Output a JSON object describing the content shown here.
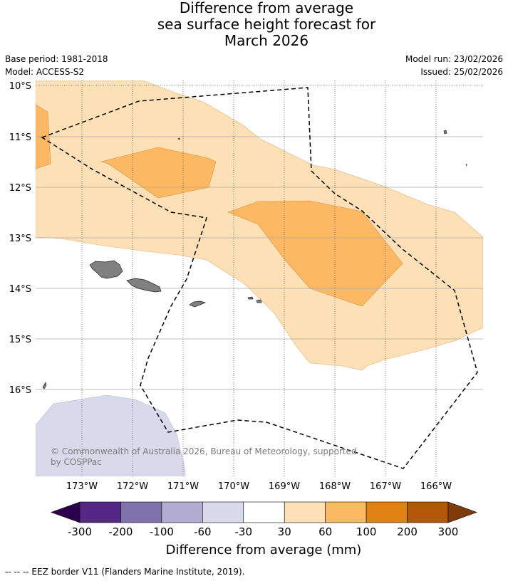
{
  "title": {
    "line1": "Difference from average",
    "line2": "sea surface height forecast for",
    "line3": "March 2026"
  },
  "meta": {
    "base_period": "Base period: 1981-2018",
    "model": "Model: ACCESS-S2",
    "model_run": "Model run: 23/02/2026",
    "issued": "Issued: 25/02/2026"
  },
  "map": {
    "lat_labels": [
      "10°S",
      "11°S",
      "12°S",
      "13°S",
      "14°S",
      "15°S",
      "16°S"
    ],
    "lon_labels": [
      "173°W",
      "172°W",
      "171°W",
      "170°W",
      "169°W",
      "168°W",
      "167°W",
      "166°W"
    ],
    "credit_line1": "© Commonwealth of Australia 2026, Bureau of Meteorology, supported",
    "credit_line2": "by COSPPac",
    "land_color": "#808080",
    "eez_style": "dashed black"
  },
  "colorbar": {
    "title": "Difference from average (mm)",
    "labels": [
      "-300",
      "-200",
      "-100",
      "-60",
      "-30",
      "30",
      "60",
      "100",
      "200",
      "300"
    ],
    "under_color": "#2d004b",
    "over_color": "#7f3b08",
    "bins": [
      {
        "range": "-300 to -200",
        "color": "#542788"
      },
      {
        "range": "-200 to -100",
        "color": "#8073ac"
      },
      {
        "range": "-100 to -60",
        "color": "#b2abd2"
      },
      {
        "range": "-60 to -30",
        "color": "#d8daeb"
      },
      {
        "range": "-30 to 30",
        "color": "#ffffff"
      },
      {
        "range": "30 to 60",
        "color": "#fee0b6"
      },
      {
        "range": "60 to 100",
        "color": "#fdb863"
      },
      {
        "range": "100 to 200",
        "color": "#e08214"
      },
      {
        "range": "200 to 300",
        "color": "#b35806"
      }
    ]
  },
  "footer": "--  --  -- EEZ border V11 (Flanders Marine Institute, 2019)."
}
